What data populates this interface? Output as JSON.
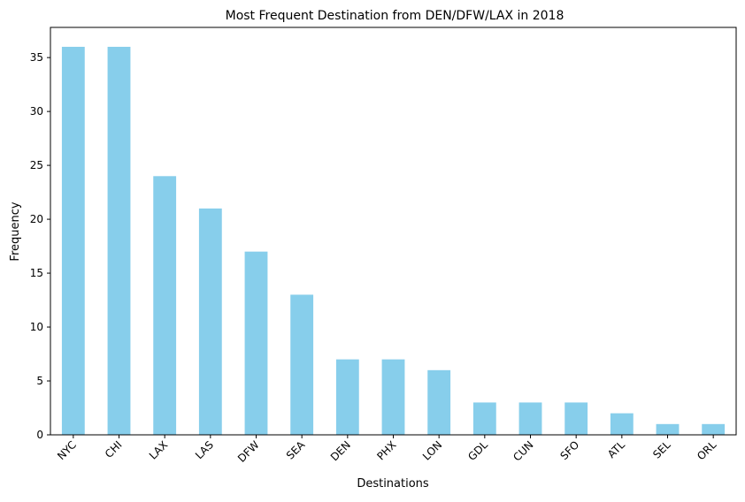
{
  "chart_data": {
    "type": "bar",
    "title": "Most Frequent Destination from DEN/DFW/LAX in 2018",
    "xlabel": "Destinations",
    "ylabel": "Frequency",
    "categories": [
      "NYC",
      "CHI",
      "LAX",
      "LAS",
      "DFW",
      "SEA",
      "DEN",
      "PHX",
      "LON",
      "GDL",
      "CUN",
      "SFO",
      "ATL",
      "SEL",
      "ORL"
    ],
    "values": [
      36,
      36,
      24,
      21,
      17,
      13,
      7,
      7,
      6,
      3,
      3,
      3,
      2,
      1,
      1
    ],
    "ylim": [
      0,
      37.8
    ],
    "yticks": [
      0,
      5,
      10,
      15,
      20,
      25,
      30,
      35
    ],
    "grid": false,
    "legend": "none",
    "bar_color": "#87ceeb",
    "axis_color": "#000000"
  }
}
